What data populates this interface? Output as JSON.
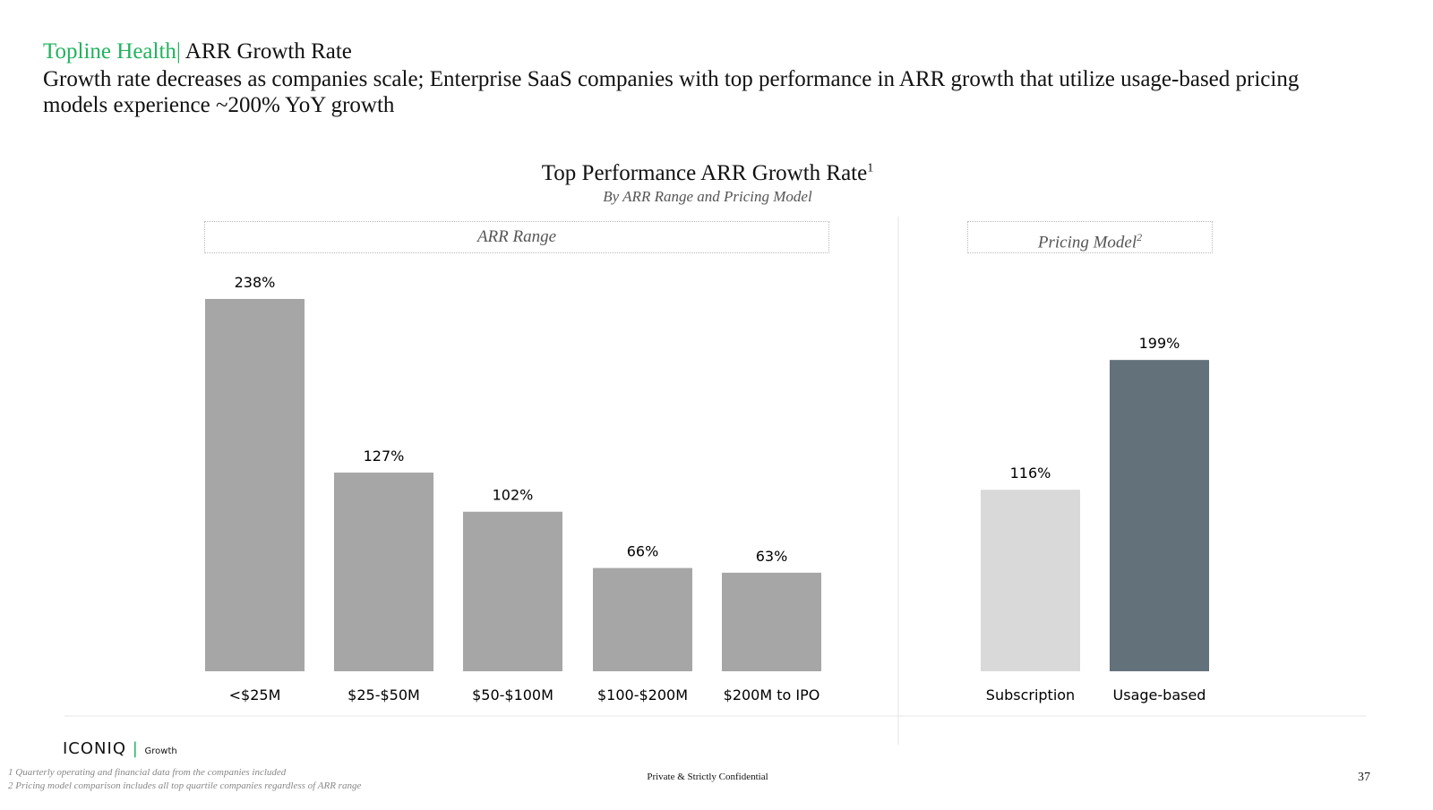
{
  "header": {
    "section": "Topline Health",
    "separator": "|",
    "topic": "ARR Growth Rate",
    "headline": "Growth rate decreases as companies scale; Enterprise SaaS companies with top performance in ARR growth that utilize usage-based pricing models experience ~200% YoY growth"
  },
  "chart_data": {
    "type": "bar",
    "title": "Top Performance ARR Growth Rate",
    "title_superscript": "1",
    "subtitle": "By ARR Range and Pricing Model",
    "ylim": [
      0,
      250
    ],
    "grid": false,
    "groups": [
      {
        "label": "ARR Range",
        "label_superscript": "",
        "categories": [
          "<$25M",
          "$25-$50M",
          "$50-$100M",
          "$100-$200M",
          "$200M to IPO"
        ],
        "values": [
          238,
          127,
          102,
          66,
          63
        ],
        "data_labels": [
          "238%",
          "127%",
          "102%",
          "66%",
          "63%"
        ],
        "colors": [
          "#a6a6a6",
          "#a6a6a6",
          "#a6a6a6",
          "#a6a6a6",
          "#a6a6a6"
        ]
      },
      {
        "label": "Pricing Model",
        "label_superscript": "2",
        "categories": [
          "Subscription",
          "Usage-based"
        ],
        "values": [
          116,
          199
        ],
        "data_labels": [
          "116%",
          "199%"
        ],
        "colors": [
          "#d9d9d9",
          "#63717b"
        ]
      }
    ]
  },
  "footer": {
    "footnotes": [
      "1 Quarterly operating and financial data from the companies included",
      "2 Pricing model comparison includes all top quartile companies regardless of ARR range"
    ],
    "logo": "ICONIQ",
    "logo_sub": "Growth",
    "confidential": "Private & Strictly Confidential",
    "page_number": "37"
  }
}
